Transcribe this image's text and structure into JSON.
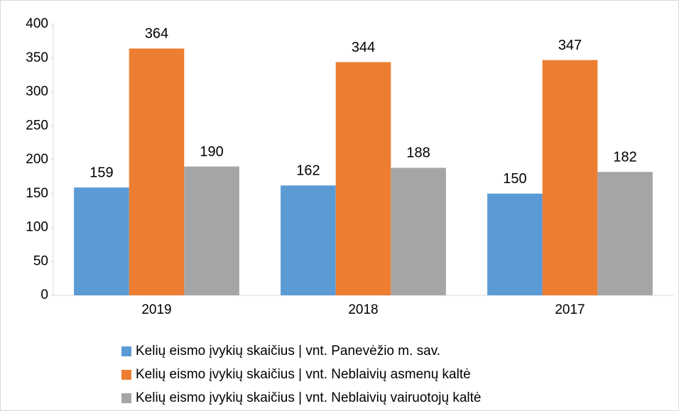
{
  "chart_data": {
    "type": "bar",
    "categories": [
      "2019",
      "2018",
      "2017"
    ],
    "series": [
      {
        "name": "Kelių eismo įvykių skaičius | vnt. Panevėžio m. sav.",
        "color": "#5b9bd5",
        "values": [
          159,
          162,
          150
        ]
      },
      {
        "name": "Kelių eismo įvykių skaičius | vnt. Neblaivių asmenų kaltė",
        "color": "#ed7d31",
        "values": [
          364,
          344,
          347
        ]
      },
      {
        "name": "Kelių eismo įvykių skaičius | vnt. Neblaivių vairuotojų kaltė",
        "color": "#a5a5a5",
        "values": [
          190,
          188,
          182
        ]
      }
    ],
    "ylim": [
      0,
      400
    ],
    "yticks": [
      0,
      50,
      100,
      150,
      200,
      250,
      300,
      350,
      400
    ],
    "grid": false,
    "legend": "bottom"
  }
}
